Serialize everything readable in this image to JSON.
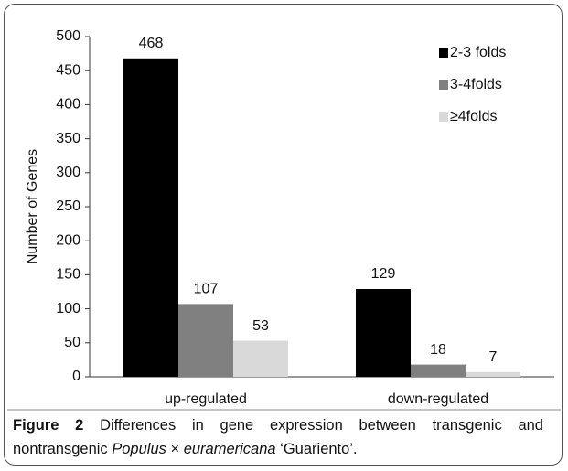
{
  "chart_data": {
    "type": "bar",
    "ylabel": "Number of Genes",
    "categories": [
      "up-regulated",
      "down-regulated"
    ],
    "series": [
      {
        "name": "2-3 folds",
        "color": "#000000",
        "values": [
          468,
          129
        ]
      },
      {
        "name": "3-4folds",
        "color": "#808080",
        "values": [
          107,
          18
        ]
      },
      {
        "name": "≥4folds",
        "color": "#d9d9d9",
        "values": [
          53,
          7
        ]
      }
    ],
    "ylim": [
      0,
      500
    ],
    "yticks": [
      0,
      50,
      100,
      150,
      200,
      250,
      300,
      350,
      400,
      450,
      500
    ],
    "grid": false,
    "legend": "top-right"
  },
  "caption": {
    "label": "Figure 2",
    "segments": [
      {
        "text": "Differences in gene expression between transgenic and nontransgenic ",
        "italic": false
      },
      {
        "text": "Populus",
        "italic": true
      },
      {
        "text": " × ",
        "italic": false
      },
      {
        "text": "euramericana",
        "italic": true
      },
      {
        "text": " ‘Guariento’.",
        "italic": false
      }
    ]
  }
}
